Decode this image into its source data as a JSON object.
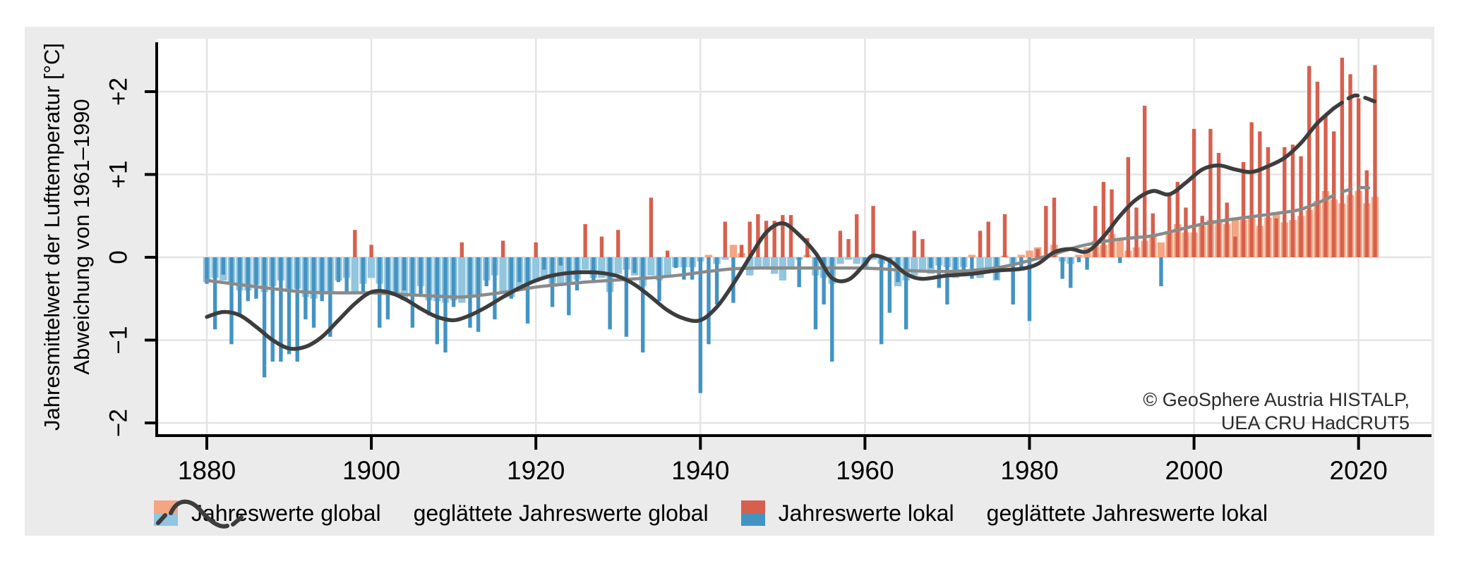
{
  "axes": {
    "y_label_line1": "Jahresmittelwert der Lufttemperatur [°C]",
    "y_label_line2": "Abweichung von 1961–1990"
  },
  "credit": {
    "line1": "© GeoSphere Austria HISTALP,",
    "line2": "UEA CRU HadCRUT5"
  },
  "legend": {
    "items": [
      {
        "kind": "swatch",
        "label": "Jahreswerte global",
        "color_top": "#F4A582",
        "color_bottom": "#92C5DE"
      },
      {
        "kind": "curve",
        "label": "geglättete Jahreswerte global",
        "color": "#8A8A8A"
      },
      {
        "kind": "swatch",
        "label": "Jahreswerte lokal",
        "color_top": "#D6604D",
        "color_bottom": "#4393C3"
      },
      {
        "kind": "curve",
        "label": "geglättete Jahreswerte lokal",
        "color": "#3D3D3D"
      }
    ]
  },
  "colors": {
    "figure_background": "#EBEBEB",
    "panel_background": "#FFFFFF",
    "gridline": "#E4E4E4",
    "axis": "#000000",
    "global_positive": "#F4A582",
    "global_negative": "#92C5DE",
    "local_positive": "#D6604D",
    "local_negative": "#4393C3",
    "smoothed_global": "#8A8A8A",
    "smoothed_local": "#3D3D3D"
  },
  "chart_data": {
    "type": "bar",
    "title": "",
    "xlabel": "",
    "ylabel": "Jahresmittelwert der Lufttemperatur [°C] — Abweichung von 1961–1990",
    "x_start": 1880,
    "x_end": 2022,
    "x_ticks": [
      1880,
      1900,
      1920,
      1940,
      1960,
      1980,
      2000,
      2020
    ],
    "y_ticks": [
      {
        "value": 2,
        "label": "+2"
      },
      {
        "value": 1,
        "label": "+1"
      },
      {
        "value": 0,
        "label": "0"
      },
      {
        "value": -1,
        "label": "−1"
      },
      {
        "value": -2,
        "label": "−2"
      }
    ],
    "ylim": [
      -2.15,
      2.64
    ],
    "grid": true,
    "legend_position": "bottom",
    "series": [
      {
        "name": "Jahreswerte global",
        "type": "bar",
        "values": [
          -0.3,
          -0.25,
          -0.28,
          -0.32,
          -0.4,
          -0.4,
          -0.33,
          -0.42,
          -0.35,
          -0.28,
          -0.42,
          -0.38,
          -0.48,
          -0.5,
          -0.45,
          -0.42,
          -0.28,
          -0.25,
          -0.42,
          -0.32,
          -0.25,
          -0.32,
          -0.42,
          -0.47,
          -0.52,
          -0.45,
          -0.35,
          -0.52,
          -0.53,
          -0.55,
          -0.52,
          -0.55,
          -0.48,
          -0.47,
          -0.28,
          -0.22,
          -0.42,
          -0.48,
          -0.38,
          -0.32,
          -0.3,
          -0.25,
          -0.35,
          -0.32,
          -0.32,
          -0.27,
          -0.15,
          -0.25,
          -0.25,
          -0.42,
          -0.2,
          -0.15,
          -0.22,
          -0.35,
          -0.22,
          -0.28,
          -0.22,
          -0.12,
          -0.12,
          -0.12,
          -0.05,
          0.03,
          -0.08,
          -0.03,
          0.15,
          0.05,
          -0.22,
          -0.15,
          -0.15,
          -0.2,
          -0.28,
          -0.12,
          -0.03,
          0.03,
          -0.22,
          -0.25,
          -0.32,
          -0.08,
          -0.03,
          -0.08,
          -0.12,
          -0.03,
          -0.08,
          -0.03,
          -0.35,
          -0.28,
          -0.22,
          -0.15,
          -0.2,
          -0.1,
          -0.12,
          -0.25,
          -0.12,
          0.03,
          -0.25,
          -0.18,
          -0.28,
          0.02,
          -0.1,
          0.03,
          0.08,
          0.12,
          0.0,
          0.15,
          -0.05,
          -0.08,
          0.03,
          0.12,
          0.2,
          0.15,
          0.28,
          0.22,
          0.08,
          0.12,
          0.2,
          0.26,
          0.18,
          0.3,
          0.4,
          0.3,
          0.3,
          0.38,
          0.45,
          0.45,
          0.4,
          0.48,
          0.45,
          0.48,
          0.38,
          0.48,
          0.52,
          0.42,
          0.45,
          0.5,
          0.57,
          0.68,
          0.8,
          0.7,
          0.65,
          0.75,
          0.8,
          0.65,
          0.73
        ]
      },
      {
        "name": "Jahreswerte lokal",
        "type": "bar",
        "values": [
          -0.32,
          -0.87,
          -0.21,
          -1.05,
          -0.7,
          -0.53,
          -0.5,
          -1.45,
          -1.26,
          -1.26,
          -1.17,
          -1.26,
          -0.75,
          -0.85,
          -0.53,
          -0.96,
          -0.3,
          -0.43,
          0.33,
          -0.43,
          0.15,
          -0.85,
          -0.75,
          -0.45,
          -0.4,
          -0.85,
          -0.45,
          -0.7,
          -1.05,
          -1.15,
          -0.6,
          0.18,
          -0.85,
          -0.9,
          -0.35,
          -0.75,
          0.2,
          -0.5,
          -0.3,
          -0.8,
          0.18,
          -0.15,
          -0.6,
          -0.1,
          -0.7,
          -0.4,
          0.4,
          -0.3,
          0.25,
          -0.87,
          0.33,
          -0.96,
          -0.19,
          -1.15,
          0.72,
          -0.53,
          0.08,
          -0.13,
          -0.27,
          -0.27,
          -1.64,
          -1.05,
          -0.57,
          0.43,
          -0.55,
          0.15,
          0.43,
          0.52,
          0.44,
          0.44,
          0.51,
          0.51,
          -0.36,
          0.23,
          -0.87,
          -0.57,
          -1.26,
          0.32,
          0.22,
          0.52,
          -0.13,
          0.62,
          -1.05,
          -0.67,
          -0.3,
          -0.87,
          0.32,
          0.22,
          -0.13,
          -0.37,
          -0.57,
          -0.21,
          -0.21,
          -0.26,
          0.32,
          0.43,
          -0.27,
          0.52,
          -0.57,
          -0.13,
          -0.77,
          0.1,
          0.62,
          0.72,
          -0.26,
          -0.37,
          -0.06,
          -0.15,
          0.62,
          0.91,
          0.82,
          -0.07,
          1.21,
          0.6,
          1.83,
          0.53,
          -0.35,
          0.75,
          0.91,
          0.6,
          1.55,
          0.5,
          1.55,
          1.26,
          0.66,
          0.25,
          1.15,
          1.63,
          1.52,
          1.33,
          0.47,
          1.33,
          1.36,
          1.22,
          2.31,
          2.12,
          1.72,
          1.52,
          2.41,
          2.21,
          1.92,
          1.05,
          2.32
        ]
      },
      {
        "name": "geglättete Jahreswerte global",
        "type": "line",
        "dashed_from": 2016,
        "points": [
          [
            1880,
            -0.28
          ],
          [
            1884,
            -0.33
          ],
          [
            1888,
            -0.38
          ],
          [
            1892,
            -0.42
          ],
          [
            1896,
            -0.43
          ],
          [
            1900,
            -0.43
          ],
          [
            1904,
            -0.45
          ],
          [
            1908,
            -0.47
          ],
          [
            1911,
            -0.48
          ],
          [
            1914,
            -0.45
          ],
          [
            1917,
            -0.41
          ],
          [
            1920,
            -0.36
          ],
          [
            1923,
            -0.33
          ],
          [
            1926,
            -0.3
          ],
          [
            1929,
            -0.28
          ],
          [
            1932,
            -0.26
          ],
          [
            1935,
            -0.24
          ],
          [
            1938,
            -0.21
          ],
          [
            1941,
            -0.17
          ],
          [
            1944,
            -0.14
          ],
          [
            1947,
            -0.13
          ],
          [
            1950,
            -0.13
          ],
          [
            1953,
            -0.13
          ],
          [
            1956,
            -0.13
          ],
          [
            1959,
            -0.13
          ],
          [
            1962,
            -0.14
          ],
          [
            1965,
            -0.16
          ],
          [
            1968,
            -0.17
          ],
          [
            1971,
            -0.17
          ],
          [
            1974,
            -0.15
          ],
          [
            1977,
            -0.11
          ],
          [
            1980,
            -0.04
          ],
          [
            1983,
            0.04
          ],
          [
            1986,
            0.13
          ],
          [
            1989,
            0.19
          ],
          [
            1992,
            0.23
          ],
          [
            1995,
            0.26
          ],
          [
            1998,
            0.33
          ],
          [
            2001,
            0.4
          ],
          [
            2004,
            0.45
          ],
          [
            2007,
            0.49
          ],
          [
            2010,
            0.53
          ],
          [
            2013,
            0.58
          ],
          [
            2016,
            0.7
          ],
          [
            2018,
            0.79
          ],
          [
            2020,
            0.84
          ],
          [
            2022,
            0.83
          ]
        ]
      },
      {
        "name": "geglättete Jahreswerte lokal",
        "type": "line",
        "dashed_from": 2017,
        "points": [
          [
            1880,
            -0.72
          ],
          [
            1882,
            -0.66
          ],
          [
            1884,
            -0.7
          ],
          [
            1886,
            -0.84
          ],
          [
            1888,
            -1.0
          ],
          [
            1890,
            -1.1
          ],
          [
            1892,
            -1.08
          ],
          [
            1894,
            -0.96
          ],
          [
            1896,
            -0.76
          ],
          [
            1898,
            -0.56
          ],
          [
            1900,
            -0.42
          ],
          [
            1902,
            -0.42
          ],
          [
            1904,
            -0.5
          ],
          [
            1906,
            -0.62
          ],
          [
            1908,
            -0.72
          ],
          [
            1910,
            -0.76
          ],
          [
            1912,
            -0.7
          ],
          [
            1914,
            -0.6
          ],
          [
            1916,
            -0.48
          ],
          [
            1918,
            -0.37
          ],
          [
            1920,
            -0.28
          ],
          [
            1922,
            -0.22
          ],
          [
            1924,
            -0.19
          ],
          [
            1926,
            -0.18
          ],
          [
            1928,
            -0.19
          ],
          [
            1930,
            -0.23
          ],
          [
            1932,
            -0.33
          ],
          [
            1934,
            -0.48
          ],
          [
            1936,
            -0.64
          ],
          [
            1938,
            -0.74
          ],
          [
            1940,
            -0.76
          ],
          [
            1942,
            -0.6
          ],
          [
            1944,
            -0.32
          ],
          [
            1946,
            0.0
          ],
          [
            1948,
            0.3
          ],
          [
            1950,
            0.41
          ],
          [
            1952,
            0.27
          ],
          [
            1954,
            0.05
          ],
          [
            1956,
            -0.25
          ],
          [
            1958,
            -0.27
          ],
          [
            1960,
            -0.08
          ],
          [
            1961,
            0.02
          ],
          [
            1963,
            -0.04
          ],
          [
            1965,
            -0.2
          ],
          [
            1967,
            -0.26
          ],
          [
            1970,
            -0.22
          ],
          [
            1973,
            -0.2
          ],
          [
            1976,
            -0.16
          ],
          [
            1979,
            -0.14
          ],
          [
            1981,
            -0.08
          ],
          [
            1983,
            0.06
          ],
          [
            1985,
            0.1
          ],
          [
            1987,
            0.07
          ],
          [
            1989,
            0.25
          ],
          [
            1991,
            0.5
          ],
          [
            1993,
            0.7
          ],
          [
            1995,
            0.8
          ],
          [
            1997,
            0.76
          ],
          [
            1999,
            0.9
          ],
          [
            2001,
            1.06
          ],
          [
            2003,
            1.11
          ],
          [
            2005,
            1.06
          ],
          [
            2007,
            1.03
          ],
          [
            2009,
            1.1
          ],
          [
            2011,
            1.2
          ],
          [
            2013,
            1.38
          ],
          [
            2015,
            1.62
          ],
          [
            2017,
            1.8
          ],
          [
            2019,
            1.93
          ],
          [
            2020,
            1.95
          ],
          [
            2022,
            1.88
          ]
        ]
      }
    ],
    "annotations": [
      "© GeoSphere Austria HISTALP,",
      "UEA CRU HadCRUT5"
    ]
  }
}
